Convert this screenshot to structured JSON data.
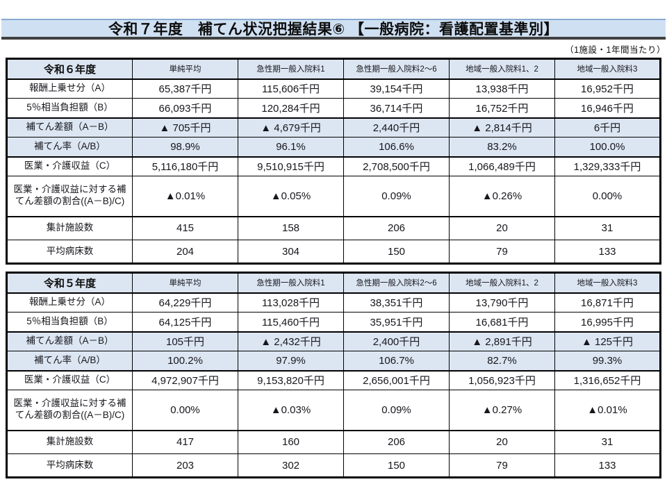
{
  "title": "令和７年度　補てん状況把握結果⑥ 【一般病院：看護配置基準別】",
  "note": "（1施設・1年間当たり）",
  "colors": {
    "row_shade": "#dce6f2",
    "title_bg": "#cfe0f2",
    "title_border_top": "#88a9d0",
    "title_border_bottom": "#404040",
    "table_border": "#000000"
  },
  "tables": [
    {
      "year_label": "令和６年度",
      "columns": [
        "単純平均",
        "急性期一般入院料1",
        "急性期一般入院料2～6",
        "地域一般入院料1、2",
        "地域一般入院料3"
      ],
      "rows": [
        {
          "label": "報酬上乗せ分（A）",
          "shaded": false,
          "tall": false,
          "values": [
            "65,387千円",
            "115,606千円",
            "39,154千円",
            "13,938千円",
            "16,952千円"
          ]
        },
        {
          "label": "5％相当負担額（B）",
          "shaded": false,
          "tall": false,
          "values": [
            "66,093千円",
            "120,284千円",
            "36,714千円",
            "16,752千円",
            "16,946千円"
          ]
        },
        {
          "label": "補てん差額（A－B）",
          "shaded": true,
          "tall": false,
          "values": [
            "▲ 705千円",
            "▲ 4,679千円",
            "2,440千円",
            "▲ 2,814千円",
            "6千円"
          ]
        },
        {
          "label": "補てん率（A/B）",
          "shaded": true,
          "tall": false,
          "values": [
            "98.9%",
            "96.1%",
            "106.6%",
            "83.2%",
            "100.0%"
          ]
        },
        {
          "label": "医業・介護収益（C）",
          "shaded": false,
          "tall": false,
          "values": [
            "5,116,180千円",
            "9,510,915千円",
            "2,708,500千円",
            "1,066,489千円",
            "1,329,333千円"
          ]
        },
        {
          "label": "医業・介護収益に対する補てん差額の割合((A－B)/C)",
          "shaded": false,
          "tall": true,
          "values": [
            "▲0.01%",
            "▲0.05%",
            "0.09%",
            "▲0.26%",
            "0.00%"
          ]
        },
        {
          "label": "集計施設数",
          "shaded": false,
          "tall": false,
          "values": [
            "415",
            "158",
            "206",
            "20",
            "31"
          ]
        },
        {
          "label": "平均病床数",
          "shaded": false,
          "tall": false,
          "values": [
            "204",
            "304",
            "150",
            "79",
            "133"
          ]
        }
      ]
    },
    {
      "year_label": "令和５年度",
      "columns": [
        "単純平均",
        "急性期一般入院料1",
        "急性期一般入院料2～6",
        "地域一般入院料1、2",
        "地域一般入院料3"
      ],
      "rows": [
        {
          "label": "報酬上乗せ分（A）",
          "shaded": false,
          "tall": false,
          "values": [
            "64,229千円",
            "113,028千円",
            "38,351千円",
            "13,790千円",
            "16,871千円"
          ]
        },
        {
          "label": "5％相当負担額（B）",
          "shaded": false,
          "tall": false,
          "values": [
            "64,125千円",
            "115,460千円",
            "35,951千円",
            "16,681千円",
            "16,995千円"
          ]
        },
        {
          "label": "補てん差額（A－B）",
          "shaded": true,
          "tall": false,
          "values": [
            "105千円",
            "▲ 2,432千円",
            "2,400千円",
            "▲ 2,891千円",
            "▲ 125千円"
          ]
        },
        {
          "label": "補てん率（A/B）",
          "shaded": true,
          "tall": false,
          "values": [
            "100.2%",
            "97.9%",
            "106.7%",
            "82.7%",
            "99.3%"
          ]
        },
        {
          "label": "医業・介護収益（C）",
          "shaded": false,
          "tall": false,
          "values": [
            "4,972,907千円",
            "9,153,820千円",
            "2,656,001千円",
            "1,056,923千円",
            "1,316,652千円"
          ]
        },
        {
          "label": "医業・介護収益に対する補てん差額の割合((A－B)/C)",
          "shaded": false,
          "tall": true,
          "values": [
            "0.00%",
            "▲0.03%",
            "0.09%",
            "▲0.27%",
            "▲0.01%"
          ]
        },
        {
          "label": "集計施設数",
          "shaded": false,
          "tall": false,
          "values": [
            "417",
            "160",
            "206",
            "20",
            "31"
          ]
        },
        {
          "label": "平均病床数",
          "shaded": false,
          "tall": false,
          "values": [
            "203",
            "302",
            "150",
            "79",
            "133"
          ]
        }
      ]
    }
  ]
}
